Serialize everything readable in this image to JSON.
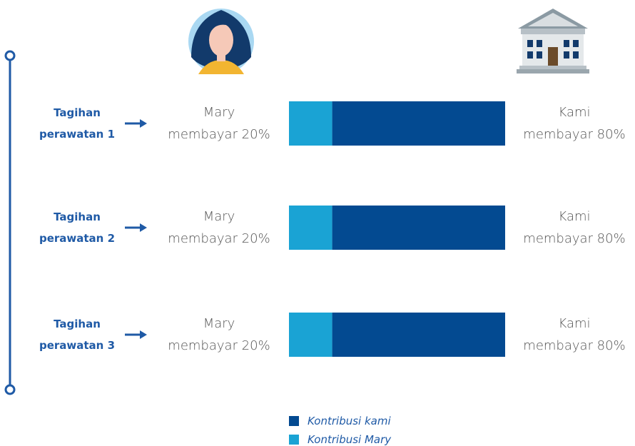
{
  "chart_data": {
    "type": "bar",
    "orientation": "horizontal",
    "stacked": true,
    "categories": [
      "Tagihan\nperawatan 1",
      "Tagihan\nperawatan 2",
      "Tagihan\nperawatan 3"
    ],
    "xlim": [
      0,
      100
    ],
    "series": [
      {
        "name": "Kontribusi Mary",
        "color": "#1aa3d4",
        "values": [
          20,
          20,
          20
        ],
        "value_labels": [
          "Mary\nmembayar 20%",
          "Mary\nmembayar 20%",
          "Mary\nmembayar 20%"
        ]
      },
      {
        "name": "Kontribusi kami",
        "color": "#034a91",
        "values": [
          80,
          80,
          80
        ],
        "value_labels": [
          "Kami\nmembayar 80%",
          "Kami\nmembayar 80%",
          "Kami\nmembayar 80%"
        ]
      }
    ]
  }
}
